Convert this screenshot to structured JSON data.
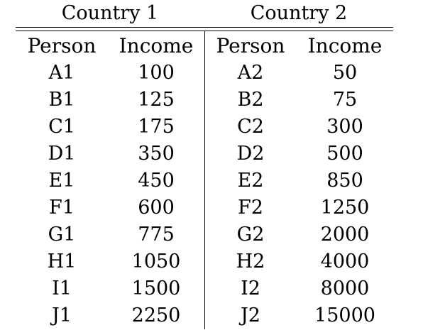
{
  "table": {
    "countries": [
      "Country 1",
      "Country 2"
    ],
    "headers": [
      "Person",
      "Income",
      "Person",
      "Income"
    ],
    "rows": [
      [
        "A1",
        "100",
        "A2",
        "50"
      ],
      [
        "B1",
        "125",
        "B2",
        "75"
      ],
      [
        "C1",
        "175",
        "C2",
        "300"
      ],
      [
        "D1",
        "350",
        "D2",
        "500"
      ],
      [
        "E1",
        "450",
        "E2",
        "850"
      ],
      [
        "F1",
        "600",
        "F2",
        "1250"
      ],
      [
        "G1",
        "775",
        "G2",
        "2000"
      ],
      [
        "H1",
        "1050",
        "H2",
        "4000"
      ],
      [
        "I1",
        "1500",
        "I2",
        "8000"
      ],
      [
        "J1",
        "2250",
        "J2",
        "15000"
      ]
    ]
  }
}
